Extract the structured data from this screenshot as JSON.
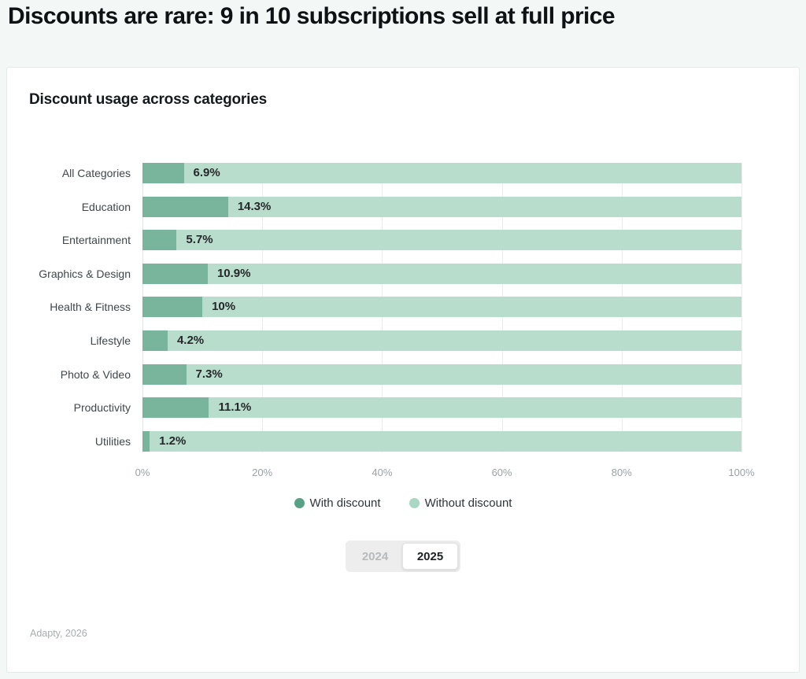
{
  "header": {
    "title": "Discounts are rare: 9 in 10 subscriptions sell at full price"
  },
  "chart_data": {
    "type": "bar",
    "orientation": "horizontal",
    "stacked": true,
    "title": "Discount usage across categories",
    "categories": [
      "All Categories",
      "Education",
      "Entertainment",
      "Graphics & Design",
      "Health & Fitness",
      "Lifestyle",
      "Photo & Video",
      "Productivity",
      "Utilities"
    ],
    "series": [
      {
        "name": "With discount",
        "values": [
          6.9,
          14.3,
          5.7,
          10.9,
          10,
          4.2,
          7.3,
          11.1,
          1.2
        ],
        "color": "#79b49d"
      },
      {
        "name": "Without discount",
        "values": [
          93.1,
          85.7,
          94.3,
          89.1,
          90,
          95.8,
          92.7,
          88.9,
          98.8
        ],
        "color": "#b8ddcd"
      }
    ],
    "value_labels": [
      "6.9%",
      "14.3%",
      "5.7%",
      "10.9%",
      "10%",
      "4.2%",
      "7.3%",
      "11.1%",
      "1.2%"
    ],
    "x_ticks": [
      "0%",
      "20%",
      "40%",
      "60%",
      "80%",
      "100%"
    ],
    "xlim": [
      0,
      100
    ],
    "grid": "vertical",
    "legend_position": "bottom"
  },
  "legend": {
    "dot_with_color": "#57a287",
    "dot_without_color": "#a8d7c3"
  },
  "toggle": {
    "options": [
      "2024",
      "2025"
    ],
    "selected": "2025"
  },
  "footer": {
    "source": "Adapty, 2026"
  }
}
